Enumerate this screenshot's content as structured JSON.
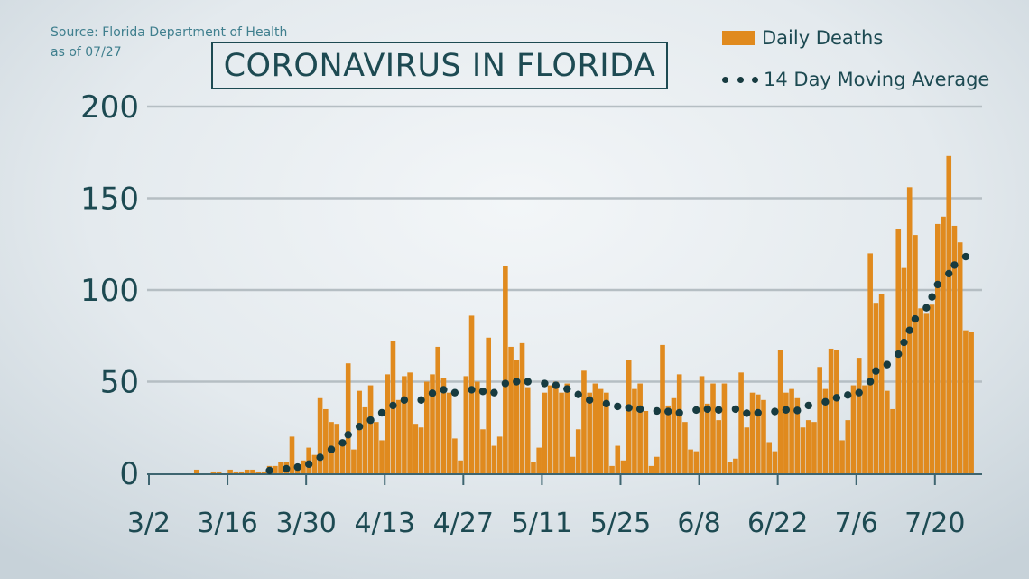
{
  "chart_data": {
    "type": "bar",
    "title": "CORONAVIRUS IN FLORIDA",
    "source": [
      "Source: Florida Department of Health",
      "as of 07/27"
    ],
    "ylim": [
      0,
      200
    ],
    "y_ticks": [
      "0",
      "50",
      "100",
      "150",
      "200"
    ],
    "x_ticks": [
      "3/2",
      "3/16",
      "3/30",
      "4/13",
      "4/27",
      "5/11",
      "5/25",
      "6/8",
      "6/22",
      "7/6",
      "7/20"
    ],
    "grid": "horizontal",
    "legend_position": "top-right",
    "colors": {
      "bars": "#e08a1e",
      "average": "#173b40",
      "text": "#1d4a52"
    },
    "x": [
      "3/2",
      "3/3",
      "3/4",
      "3/5",
      "3/6",
      "3/7",
      "3/8",
      "3/9",
      "3/10",
      "3/11",
      "3/12",
      "3/13",
      "3/14",
      "3/15",
      "3/16",
      "3/17",
      "3/18",
      "3/19",
      "3/20",
      "3/21",
      "3/22",
      "3/23",
      "3/24",
      "3/25",
      "3/26",
      "3/27",
      "3/28",
      "3/29",
      "3/30",
      "3/31",
      "4/1",
      "4/2",
      "4/3",
      "4/4",
      "4/5",
      "4/6",
      "4/7",
      "4/8",
      "4/9",
      "4/10",
      "4/11",
      "4/12",
      "4/13",
      "4/14",
      "4/15",
      "4/16",
      "4/17",
      "4/18",
      "4/19",
      "4/20",
      "4/21",
      "4/22",
      "4/23",
      "4/24",
      "4/25",
      "4/26",
      "4/27",
      "4/28",
      "4/29",
      "4/30",
      "5/1",
      "5/2",
      "5/3",
      "5/4",
      "5/5",
      "5/6",
      "5/7",
      "5/8",
      "5/9",
      "5/10",
      "5/11",
      "5/12",
      "5/13",
      "5/14",
      "5/15",
      "5/16",
      "5/17",
      "5/18",
      "5/19",
      "5/20",
      "5/21",
      "5/22",
      "5/23",
      "5/24",
      "5/25",
      "5/26",
      "5/27",
      "5/28",
      "5/29",
      "5/30",
      "5/31",
      "6/1",
      "6/2",
      "6/3",
      "6/4",
      "6/5",
      "6/6",
      "6/7",
      "6/8",
      "6/9",
      "6/10",
      "6/11",
      "6/12",
      "6/13",
      "6/14",
      "6/15",
      "6/16",
      "6/17",
      "6/18",
      "6/19",
      "6/20",
      "6/21",
      "6/22",
      "6/23",
      "6/24",
      "6/25",
      "6/26",
      "6/27",
      "6/28",
      "6/29",
      "6/30",
      "7/1",
      "7/2",
      "7/3",
      "7/4",
      "7/5",
      "7/6",
      "7/7",
      "7/8",
      "7/9",
      "7/10",
      "7/11",
      "7/12",
      "7/13",
      "7/14",
      "7/15",
      "7/16",
      "7/17",
      "7/18",
      "7/19",
      "7/20",
      "7/21",
      "7/22",
      "7/23",
      "7/24",
      "7/25",
      "7/26"
    ],
    "series": [
      {
        "name": "Daily Deaths",
        "type": "bar",
        "values": [
          0,
          0,
          0,
          0,
          0,
          0,
          0,
          0,
          2,
          0,
          0,
          1,
          1,
          0,
          2,
          1,
          1,
          2,
          2,
          1,
          1,
          4,
          4,
          6,
          6,
          20,
          3,
          7,
          14,
          10,
          41,
          35,
          28,
          27,
          15,
          60,
          13,
          45,
          36,
          48,
          28,
          18,
          54,
          72,
          40,
          53,
          55,
          27,
          25,
          50,
          54,
          69,
          52,
          44,
          19,
          7,
          53,
          86,
          50,
          24,
          74,
          15,
          20,
          113,
          69,
          62,
          71,
          47,
          6,
          14,
          44,
          48,
          50,
          44,
          49,
          9,
          24,
          56,
          44,
          49,
          46,
          44,
          4,
          15,
          7,
          62,
          46,
          49,
          34,
          4,
          9,
          70,
          37,
          41,
          54,
          28,
          13,
          12,
          53,
          38,
          49,
          29,
          49,
          6,
          8,
          55,
          25,
          44,
          43,
          40,
          17,
          12,
          67,
          44,
          46,
          41,
          25,
          29,
          28,
          58,
          46,
          68,
          67,
          18,
          29,
          48,
          63,
          48,
          120,
          93,
          98,
          45,
          35,
          133,
          112,
          156,
          130,
          90,
          87,
          92,
          136,
          140,
          173,
          135,
          126,
          78,
          77
        ]
      },
      {
        "name": "14 Day Moving Average",
        "type": "dotted-line",
        "points": [
          [
            "3/23",
            1.5
          ],
          [
            "3/26",
            2.5
          ],
          [
            "3/28",
            3.4
          ],
          [
            "3/30",
            5
          ],
          [
            "4/1",
            8.7
          ],
          [
            "4/3",
            13
          ],
          [
            "4/5",
            16.6
          ],
          [
            "4/6",
            21
          ],
          [
            "4/8",
            25.5
          ],
          [
            "4/10",
            29
          ],
          [
            "4/12",
            33
          ],
          [
            "4/14",
            37
          ],
          [
            "4/16",
            40
          ],
          [
            "4/19",
            40
          ],
          [
            "4/21",
            43.7
          ],
          [
            "4/23",
            45.6
          ],
          [
            "4/25",
            44
          ],
          [
            "4/28",
            45.6
          ],
          [
            "4/30",
            44.7
          ],
          [
            "5/2",
            44
          ],
          [
            "5/4",
            49
          ],
          [
            "5/6",
            50
          ],
          [
            "5/8",
            50
          ],
          [
            "5/11",
            49
          ],
          [
            "5/13",
            48
          ],
          [
            "5/15",
            46
          ],
          [
            "5/17",
            43
          ],
          [
            "5/19",
            40
          ],
          [
            "5/22",
            38
          ],
          [
            "5/24",
            36.5
          ],
          [
            "5/26",
            35.7
          ],
          [
            "5/28",
            35
          ],
          [
            "5/31",
            34
          ],
          [
            "6/2",
            33.7
          ],
          [
            "6/4",
            33
          ],
          [
            "6/7",
            34.5
          ],
          [
            "6/9",
            35
          ],
          [
            "6/11",
            34.6
          ],
          [
            "6/14",
            35
          ],
          [
            "6/16",
            32.8
          ],
          [
            "6/18",
            33
          ],
          [
            "6/21",
            33.7
          ],
          [
            "6/23",
            34.6
          ],
          [
            "6/25",
            34.3
          ],
          [
            "6/27",
            37
          ],
          [
            "6/30",
            39
          ],
          [
            "7/2",
            41.2
          ],
          [
            "7/4",
            42.7
          ],
          [
            "7/6",
            44
          ],
          [
            "7/8",
            50
          ],
          [
            "7/9",
            55.8
          ],
          [
            "7/11",
            59.3
          ],
          [
            "7/13",
            65
          ],
          [
            "7/14",
            71.4
          ],
          [
            "7/15",
            78
          ],
          [
            "7/16",
            84.2
          ],
          [
            "7/18",
            90.3
          ],
          [
            "7/19",
            96.2
          ],
          [
            "7/20",
            103
          ],
          [
            "7/22",
            108.9
          ],
          [
            "7/23",
            113.6
          ],
          [
            "7/25",
            118.2
          ]
        ]
      }
    ]
  }
}
